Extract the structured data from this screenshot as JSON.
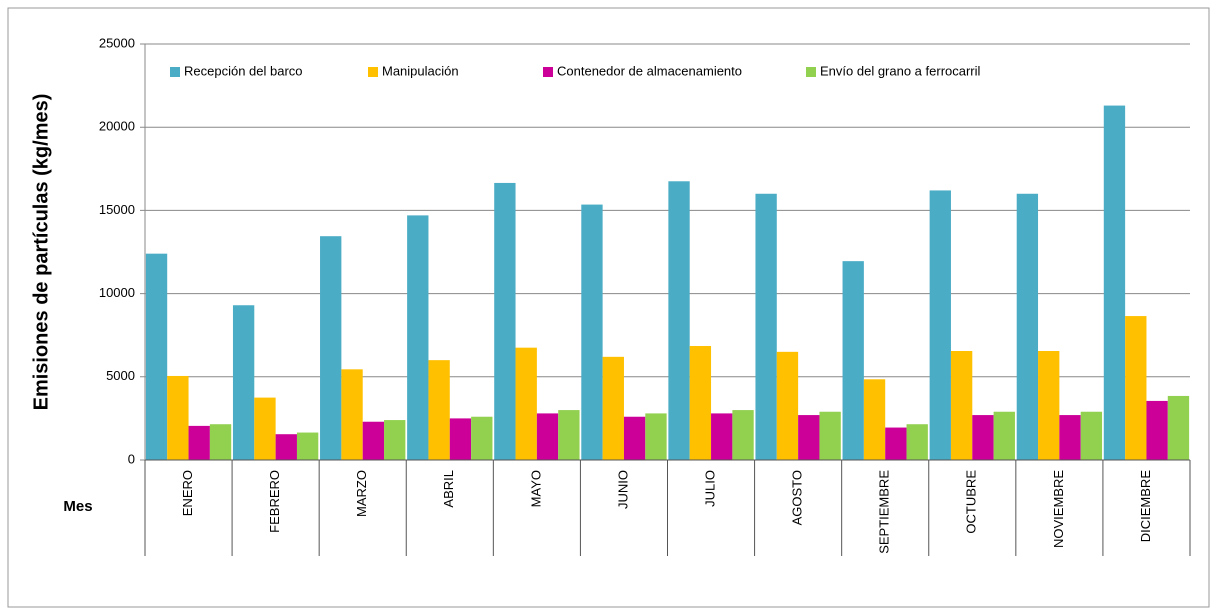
{
  "chart_data": {
    "type": "bar",
    "ylabel": "Emisiones de partículas (kg/mes)",
    "xlabel": "Mes",
    "categories": [
      "ENERO",
      "FEBRERO",
      "MARZO",
      "ABRIL",
      "MAYO",
      "JUNIO",
      "JULIO",
      "AGOSTO",
      "SEPTIEMBRE",
      "OCTUBRE",
      "NOVIEMBRE",
      "DICIEMBRE"
    ],
    "series": [
      {
        "name": "Recepción del barco",
        "color": "#4bacc6",
        "values": [
          12400,
          9300,
          13450,
          14700,
          16650,
          15350,
          16750,
          16000,
          11950,
          16200,
          16000,
          21300
        ]
      },
      {
        "name": "Manipulación",
        "color": "#ffc000",
        "values": [
          5050,
          3750,
          5450,
          6000,
          6750,
          6200,
          6850,
          6500,
          4850,
          6550,
          6550,
          8650
        ]
      },
      {
        "name": "Contenedor de almacenamiento",
        "color": "#cc0099",
        "values": [
          2050,
          1550,
          2300,
          2500,
          2800,
          2600,
          2800,
          2700,
          1950,
          2700,
          2700,
          3550
        ]
      },
      {
        "name": "Envío del grano a ferrocarril",
        "color": "#92d050",
        "values": [
          2150,
          1650,
          2400,
          2600,
          3000,
          2800,
          3000,
          2900,
          2150,
          2900,
          2900,
          3850
        ]
      }
    ],
    "ylim": [
      0,
      25000
    ],
    "yticks": [
      0,
      5000,
      10000,
      15000,
      20000,
      25000
    ],
    "grid": true,
    "legend": "top"
  }
}
